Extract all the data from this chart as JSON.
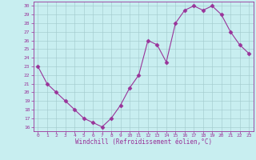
{
  "x": [
    0,
    1,
    2,
    3,
    4,
    5,
    6,
    7,
    8,
    9,
    10,
    11,
    12,
    13,
    14,
    15,
    16,
    17,
    18,
    19,
    20,
    21,
    22,
    23
  ],
  "y": [
    23,
    21,
    20,
    19,
    18,
    17,
    16.5,
    16,
    17,
    18.5,
    20.5,
    22,
    26,
    25.5,
    23.5,
    28,
    29.5,
    30,
    29.5,
    30,
    29,
    27,
    25.5,
    24.5
  ],
  "bg_color": "#c8eef0",
  "line_color": "#993399",
  "marker_color": "#993399",
  "grid_color": "#a0c8cc",
  "xlabel": "Windchill (Refroidissement éolien,°C)",
  "ylim": [
    15.5,
    30.5
  ],
  "xlim": [
    -0.5,
    23.5
  ],
  "yticks": [
    16,
    17,
    18,
    19,
    20,
    21,
    22,
    23,
    24,
    25,
    26,
    27,
    28,
    29,
    30
  ],
  "xticks": [
    0,
    1,
    2,
    3,
    4,
    5,
    6,
    7,
    8,
    9,
    10,
    11,
    12,
    13,
    14,
    15,
    16,
    17,
    18,
    19,
    20,
    21,
    22,
    23
  ]
}
